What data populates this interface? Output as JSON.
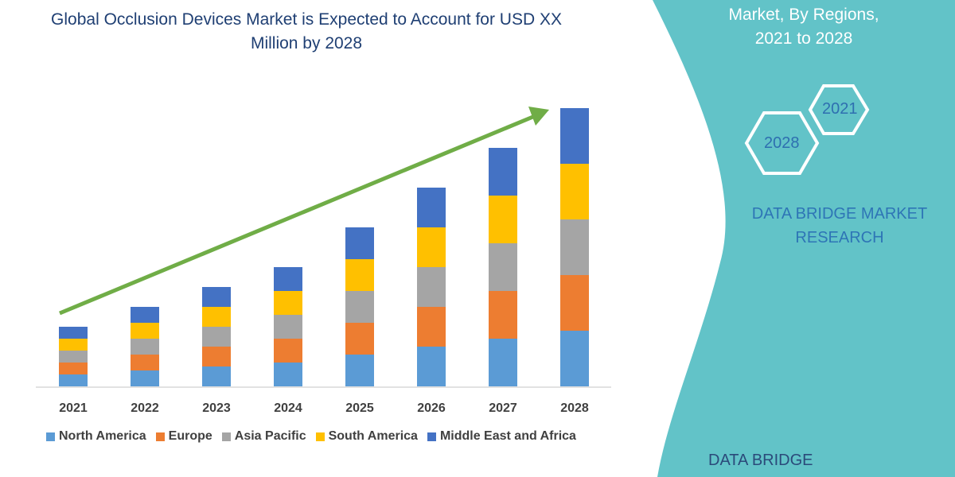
{
  "title": "Global Occlusion Devices Market is Expected to Account for USD XX Million by 2028",
  "side_panel": {
    "subtitle_line1": "Market, By Regions,",
    "subtitle_line2": "2021 to 2028",
    "hex_start": "2021",
    "hex_end": "2028",
    "brand_line1": "DATA BRIDGE MARKET",
    "brand_line2": "RESEARCH",
    "logo_text": "DATA BRIDGE",
    "panel_color": "#62c3c8"
  },
  "chart_data": {
    "type": "bar",
    "stacked": true,
    "categories": [
      "2021",
      "2022",
      "2023",
      "2024",
      "2025",
      "2026",
      "2027",
      "2028"
    ],
    "series": [
      {
        "name": "North America",
        "color": "#5b9bd5",
        "values": [
          15,
          20,
          25,
          30,
          40,
          50,
          60,
          70
        ]
      },
      {
        "name": "Europe",
        "color": "#ed7d31",
        "values": [
          15,
          20,
          25,
          30,
          40,
          50,
          60,
          70
        ]
      },
      {
        "name": "Asia Pacific",
        "color": "#a5a5a5",
        "values": [
          15,
          20,
          25,
          30,
          40,
          50,
          60,
          70
        ]
      },
      {
        "name": "South America",
        "color": "#ffc000",
        "values": [
          15,
          20,
          25,
          30,
          40,
          50,
          60,
          70
        ]
      },
      {
        "name": "Middle East and Africa",
        "color": "#4472c4",
        "values": [
          15,
          20,
          25,
          30,
          40,
          50,
          60,
          70
        ]
      }
    ],
    "trend_arrow_color": "#70ad47",
    "legend_position": "bottom",
    "grid": false
  }
}
